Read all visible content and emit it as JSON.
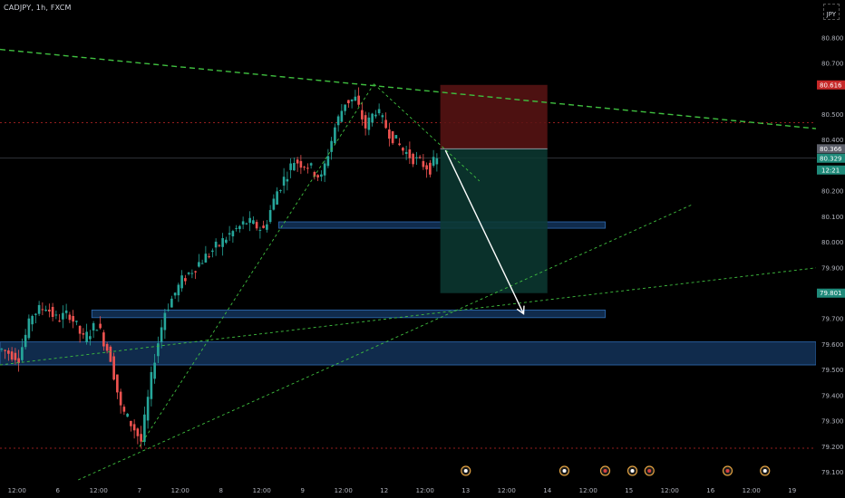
{
  "header": {
    "symbol": "CADJPY, 1h, FXCM",
    "currency": "JPY"
  },
  "colors": {
    "background": "#000000",
    "up_candle": "#26a69a",
    "down_candle": "#ef5350",
    "trendline": "#3fbf3f",
    "zone": "#1e4f8a",
    "stop_zone": "#5a1414",
    "target_zone": "#0c3a32",
    "price_line_red": "#c62828",
    "arrow": "#ffffff"
  },
  "chart_data": {
    "type": "candlestick",
    "symbol": "CADJPY",
    "interval": "1h",
    "ylim": [
      79.07,
      80.92
    ],
    "y_ticks": [
      80.8,
      80.7,
      80.5,
      80.4,
      80.2,
      80.1,
      80.0,
      79.9,
      79.7,
      79.6,
      79.5,
      79.4,
      79.3,
      79.2,
      79.1
    ],
    "y_tick_labels": [
      "80.800",
      "80.700",
      "80.500",
      "80.400",
      "80.200",
      "80.100",
      "80.000",
      "79.900",
      "79.700",
      "79.600",
      "79.500",
      "79.400",
      "79.300",
      "79.200",
      "79.100"
    ],
    "x_ticks": [
      {
        "i": 5,
        "label": "12:00"
      },
      {
        "i": 17,
        "label": "6"
      },
      {
        "i": 29,
        "label": "12:00"
      },
      {
        "i": 41,
        "label": "7"
      },
      {
        "i": 53,
        "label": "12:00"
      },
      {
        "i": 65,
        "label": "8"
      },
      {
        "i": 77,
        "label": "12:00"
      },
      {
        "i": 89,
        "label": "9"
      },
      {
        "i": 101,
        "label": "12:00"
      },
      {
        "i": 113,
        "label": "12"
      },
      {
        "i": 125,
        "label": "12:00"
      },
      {
        "i": 137,
        "label": "13"
      },
      {
        "i": 149,
        "label": "12:00"
      },
      {
        "i": 161,
        "label": "14"
      },
      {
        "i": 173,
        "label": "12:00"
      },
      {
        "i": 185,
        "label": "15"
      },
      {
        "i": 197,
        "label": "12:00"
      },
      {
        "i": 209,
        "label": "16"
      },
      {
        "i": 221,
        "label": "12:00"
      },
      {
        "i": 233,
        "label": "19"
      }
    ],
    "candles_waypoints": [
      [
        0,
        79.58
      ],
      [
        5,
        79.55
      ],
      [
        9,
        79.72
      ],
      [
        13,
        79.75
      ],
      [
        16,
        79.7
      ],
      [
        20,
        79.72
      ],
      [
        24,
        79.62
      ],
      [
        28,
        79.68
      ],
      [
        32,
        79.55
      ],
      [
        35,
        79.35
      ],
      [
        39,
        79.27
      ],
      [
        41,
        79.22
      ],
      [
        45,
        79.55
      ],
      [
        48,
        79.73
      ],
      [
        53,
        79.85
      ],
      [
        58,
        79.92
      ],
      [
        63,
        79.98
      ],
      [
        67,
        80.03
      ],
      [
        72,
        80.08
      ],
      [
        77,
        80.05
      ],
      [
        81,
        80.2
      ],
      [
        86,
        80.32
      ],
      [
        90,
        80.3
      ],
      [
        94,
        80.25
      ],
      [
        98,
        80.45
      ],
      [
        101,
        80.55
      ],
      [
        104,
        80.56
      ],
      [
        107,
        80.45
      ],
      [
        110,
        80.52
      ],
      [
        114,
        80.43
      ],
      [
        118,
        80.36
      ],
      [
        122,
        80.32
      ],
      [
        126,
        80.29
      ],
      [
        128,
        80.33
      ]
    ],
    "last_candle_index": 128,
    "current_price": "80.329",
    "countdown": "12:21",
    "position": {
      "type": "short",
      "entry": 80.366,
      "entry_label": "80.366",
      "stop": 80.616,
      "stop_label": "80.616",
      "target": 79.801,
      "target_label": "79.801",
      "start_i": 129.5,
      "end_i": 161
    },
    "zones": [
      {
        "from_i": 82,
        "to_i": 178,
        "low": 80.055,
        "high": 80.08
      },
      {
        "from_i": 27,
        "to_i": 178,
        "low": 79.705,
        "high": 79.735
      },
      {
        "from_i": 0,
        "to_i": 240,
        "low": 79.52,
        "high": 79.61
      }
    ],
    "horizontal_lines": [
      80.468,
      79.194
    ],
    "trendlines": [
      {
        "from": [
          0,
          80.755
        ],
        "to": [
          240,
          80.445
        ],
        "dash": "6,4",
        "width": 1.4
      },
      {
        "from": [
          41,
          79.2
        ],
        "to": [
          110,
          80.62
        ],
        "dash": "3,3",
        "width": 0.9
      },
      {
        "from": [
          110,
          80.62
        ],
        "to": [
          141,
          80.24
        ],
        "dash": "3,3",
        "width": 0.9
      },
      {
        "from": [
          23,
          79.07
        ],
        "to": [
          204,
          80.15
        ],
        "dash": "3,3",
        "width": 0.9
      },
      {
        "from": [
          0,
          79.52
        ],
        "to": [
          240,
          79.9
        ],
        "dash": "3,3",
        "width": 0.9
      }
    ],
    "projection_arrow": {
      "from": [
        131,
        80.36
      ],
      "to": [
        154,
        79.72
      ]
    },
    "event_markers": [
      {
        "i": 137,
        "kind": "flag"
      },
      {
        "i": 166,
        "kind": "flag"
      },
      {
        "i": 178,
        "kind": "dot"
      },
      {
        "i": 186,
        "kind": "flag"
      },
      {
        "i": 191,
        "kind": "dot"
      },
      {
        "i": 214,
        "kind": "dot"
      },
      {
        "i": 225,
        "kind": "flag"
      }
    ]
  }
}
